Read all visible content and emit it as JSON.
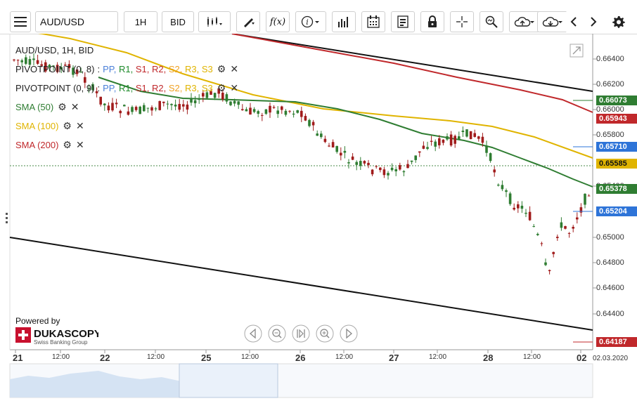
{
  "toolbar": {
    "symbol": "AUD/USD",
    "timeframe": "1H",
    "side": "BID",
    "tooltip_function": "f(x)",
    "tooltip_info": "i"
  },
  "legend": {
    "title": "AUD/USD, 1H, BID",
    "pivot1": {
      "name": "PIVOTPOINT (0, 8)",
      "sep": ":",
      "pp": "PP,",
      "r1": "R1,",
      "s1": "S1,",
      "r2": "R2,",
      "s2": "S2,",
      "r3": "R3,",
      "s3": "S3"
    },
    "pivot2": {
      "name": "PIVOTPOINT (0, 9)",
      "sep": ":",
      "pp": "PP,",
      "r1": "R1,",
      "s1": "S1,",
      "r2": "R2,",
      "s2": "S2,",
      "r3": "R3,",
      "s3": "S3"
    },
    "sma50": "SMA (50)",
    "sma100": "SMA (100)",
    "sma200": "SMA (200)"
  },
  "branding": {
    "powered_by": "Powered by",
    "logo_text": "DUKASCOPY",
    "logo_subtext": "Swiss Banking Group"
  },
  "price_axis": {
    "ticks": [
      "0.66400",
      "0.66200",
      "0.66000",
      "0.65800",
      "0.65400",
      "0.65000",
      "0.64800",
      "0.64600",
      "0.64400"
    ],
    "labels": [
      {
        "value": "0.66073",
        "color": "#2f7d32"
      },
      {
        "value": "0.65943",
        "color": "#c0282b"
      },
      {
        "value": "0.65710",
        "color": "#2e74d8"
      },
      {
        "value": "0.65585",
        "color": "#e0b400"
      },
      {
        "value": "0.65378",
        "color": "#2f7d32"
      },
      {
        "value": "0.65204",
        "color": "#2e74d8"
      },
      {
        "value": "0.64187",
        "color": "#c0282b"
      }
    ]
  },
  "time_axis": {
    "labels": [
      "21",
      "12:00",
      "22",
      "12:00",
      "25",
      "12:00",
      "26",
      "12:00",
      "27",
      "12:00",
      "28",
      "12:00",
      "02",
      "02.03.2020"
    ]
  },
  "chart_data": {
    "type": "candlestick",
    "symbol": "AUD/USD",
    "timeframe": "1H",
    "ylim": [
      0.6405,
      0.666
    ],
    "series": [
      {
        "name": "SMA (50)",
        "color": "#2f7d32",
        "current": 0.65378
      },
      {
        "name": "SMA (100)",
        "color": "#e0b400",
        "current": 0.65585
      },
      {
        "name": "SMA (200)",
        "color": "#c0282b",
        "current": 0.65943
      }
    ],
    "last_price": 0.65204,
    "ask_price": 0.6571
  }
}
